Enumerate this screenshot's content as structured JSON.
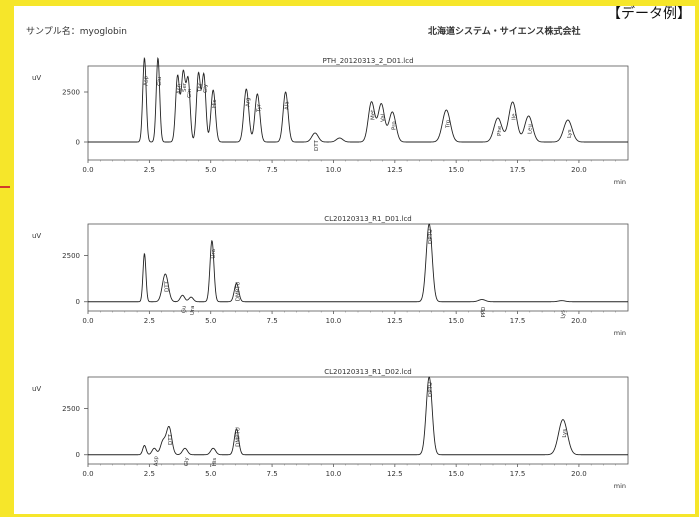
{
  "page": {
    "tag": "【データ例】",
    "sample_name": "サンプル名：myoglobin",
    "company": "北海道システム・サイエンス株式会社"
  },
  "chart_data": [
    {
      "type": "line",
      "title": "PTH_20120313_2_D01.lcd",
      "ylabel": "uV",
      "xlabel": "min",
      "xlim": [
        0,
        22
      ],
      "ylim": [
        -500,
        4200
      ],
      "yticks": [
        0,
        2500
      ],
      "ytick_labels": [
        "0",
        "2500"
      ],
      "xticks": [
        0,
        2.5,
        5,
        7.5,
        10,
        12.5,
        15,
        17.5,
        20
      ],
      "xtick_labels": [
        "0.0",
        "2.5",
        "5.0",
        "7.5",
        "10.0",
        "12.5",
        "15.0",
        "17.5",
        "20.0"
      ],
      "peaks": [
        {
          "t": 2.3,
          "h": 4200,
          "w": 0.07,
          "label": "Asp"
        },
        {
          "t": 2.85,
          "h": 4200,
          "w": 0.07,
          "label": "Glu"
        },
        {
          "t": 3.65,
          "h": 3300,
          "w": 0.08,
          "label": "Asn"
        },
        {
          "t": 3.88,
          "h": 3400,
          "w": 0.08,
          "label": "Ser"
        },
        {
          "t": 4.08,
          "h": 3100,
          "w": 0.08,
          "label": "Gln"
        },
        {
          "t": 4.5,
          "h": 3400,
          "w": 0.08,
          "label": "Thr"
        },
        {
          "t": 4.72,
          "h": 3350,
          "w": 0.08,
          "label": "Gly"
        },
        {
          "t": 5.1,
          "h": 2600,
          "w": 0.09,
          "label": "His"
        },
        {
          "t": 6.45,
          "h": 2650,
          "w": 0.1,
          "label": "Arg"
        },
        {
          "t": 6.9,
          "h": 2400,
          "w": 0.1,
          "label": "Tyr"
        },
        {
          "t": 8.05,
          "h": 2500,
          "w": 0.1,
          "label": "Ala"
        },
        {
          "t": 9.25,
          "h": 450,
          "w": 0.13,
          "label": "DTT"
        },
        {
          "t": 10.25,
          "h": 200,
          "w": 0.13,
          "label": ""
        },
        {
          "t": 11.55,
          "h": 2000,
          "w": 0.13,
          "label": "Met"
        },
        {
          "t": 11.95,
          "h": 1900,
          "w": 0.13,
          "label": "Val"
        },
        {
          "t": 12.4,
          "h": 1500,
          "w": 0.14,
          "label": "Pro"
        },
        {
          "t": 14.6,
          "h": 1600,
          "w": 0.16,
          "label": "Trp"
        },
        {
          "t": 16.7,
          "h": 1200,
          "w": 0.16,
          "label": "Phe"
        },
        {
          "t": 17.3,
          "h": 2000,
          "w": 0.16,
          "label": "Ile"
        },
        {
          "t": 17.95,
          "h": 1300,
          "w": 0.16,
          "label": "Leu"
        },
        {
          "t": 19.55,
          "h": 1100,
          "w": 0.17,
          "label": "Lys"
        }
      ]
    },
    {
      "type": "line",
      "title": "CL20120313_R1_D01.lcd",
      "ylabel": "uV",
      "xlabel": "min",
      "xlim": [
        0,
        22
      ],
      "ylim": [
        -500,
        4200
      ],
      "yticks": [
        0,
        2500
      ],
      "ytick_labels": [
        "0",
        "2500"
      ],
      "xticks": [
        0,
        2.5,
        5,
        7.5,
        10,
        12.5,
        15,
        17.5,
        20
      ],
      "xtick_labels": [
        "0.0",
        "2.5",
        "5.0",
        "7.5",
        "10.0",
        "12.5",
        "15.0",
        "17.5",
        "20.0"
      ],
      "peaks": [
        {
          "t": 2.3,
          "h": 2600,
          "w": 0.06,
          "label": ""
        },
        {
          "t": 3.15,
          "h": 1500,
          "w": 0.12,
          "label": "DTT"
        },
        {
          "t": 3.85,
          "h": 350,
          "w": 0.09,
          "label": "Gu"
        },
        {
          "t": 4.2,
          "h": 250,
          "w": 0.09,
          "label": "Ura"
        },
        {
          "t": 5.05,
          "h": 3300,
          "w": 0.08,
          "label": "Ura"
        },
        {
          "t": 6.05,
          "h": 1000,
          "w": 0.09,
          "label": "DMPTU"
        },
        {
          "t": 13.9,
          "h": 4200,
          "w": 0.12,
          "label": "DPTU"
        },
        {
          "t": 16.05,
          "h": 120,
          "w": 0.14,
          "label": "PPD"
        },
        {
          "t": 19.3,
          "h": 60,
          "w": 0.14,
          "label": "Lys"
        }
      ]
    },
    {
      "type": "line",
      "title": "CL20120313_R1_D02.lcd",
      "ylabel": "uV",
      "xlabel": "min",
      "xlim": [
        0,
        22
      ],
      "ylim": [
        -500,
        4200
      ],
      "yticks": [
        0,
        2500
      ],
      "ytick_labels": [
        "0",
        "2500"
      ],
      "xticks": [
        0,
        2.5,
        5,
        7.5,
        10,
        12.5,
        15,
        17.5,
        20
      ],
      "xtick_labels": [
        "0.0",
        "2.5",
        "5.0",
        "7.5",
        "10.0",
        "12.5",
        "15.0",
        "17.5",
        "20.0"
      ],
      "peaks": [
        {
          "t": 2.3,
          "h": 500,
          "w": 0.07,
          "label": ""
        },
        {
          "t": 2.7,
          "h": 350,
          "w": 0.09,
          "label": "Asp"
        },
        {
          "t": 3.05,
          "h": 700,
          "w": 0.1,
          "label": ""
        },
        {
          "t": 3.3,
          "h": 1500,
          "w": 0.11,
          "label": "DTT"
        },
        {
          "t": 3.95,
          "h": 350,
          "w": 0.1,
          "label": "Gly"
        },
        {
          "t": 5.1,
          "h": 350,
          "w": 0.1,
          "label": "His"
        },
        {
          "t": 6.05,
          "h": 1400,
          "w": 0.09,
          "label": "DMPTU"
        },
        {
          "t": 13.9,
          "h": 4200,
          "w": 0.12,
          "label": "DPTU"
        },
        {
          "t": 19.35,
          "h": 1900,
          "w": 0.18,
          "label": "Lys"
        }
      ]
    }
  ]
}
